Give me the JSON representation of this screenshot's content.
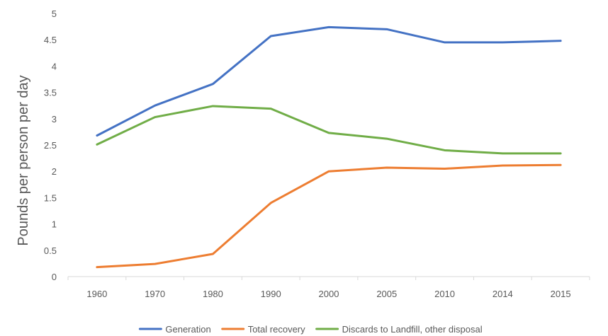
{
  "chart_data": {
    "type": "line",
    "title": "",
    "xlabel": "",
    "ylabel": "Pounds per person per day",
    "categories": [
      "1960",
      "1970",
      "1980",
      "1990",
      "2000",
      "2005",
      "2010",
      "2014",
      "2015"
    ],
    "ylim": [
      0,
      5
    ],
    "yticks": [
      "0",
      "0.5",
      "1",
      "1.5",
      "2",
      "2.5",
      "3",
      "3.5",
      "4",
      "4.5",
      "5"
    ],
    "grid": false,
    "legend_position": "bottom",
    "series": [
      {
        "name": "Generation",
        "color": "#4472C4",
        "values": [
          2.68,
          3.25,
          3.66,
          4.57,
          4.74,
          4.7,
          4.45,
          4.45,
          4.48
        ]
      },
      {
        "name": "Total recovery",
        "color": "#ED7D31",
        "values": [
          0.18,
          0.24,
          0.43,
          1.4,
          2.0,
          2.07,
          2.05,
          2.11,
          2.12
        ]
      },
      {
        "name": "Discards to Landfill, other disposal",
        "color": "#70AD47",
        "values": [
          2.51,
          3.03,
          3.24,
          3.19,
          2.73,
          2.62,
          2.4,
          2.34,
          2.34
        ]
      }
    ],
    "axis_color": "#d9d9d9"
  }
}
